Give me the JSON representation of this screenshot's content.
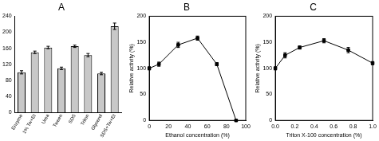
{
  "chart_data": [
    {
      "type": "bar",
      "title": "A",
      "categories": [
        "Enzyme",
        "1% Tw+Et",
        "Urea",
        "Tween",
        "SDS",
        "Triton",
        "Glycerol",
        "SDS+Tw+Et"
      ],
      "values": [
        100,
        150,
        162,
        110,
        165,
        143,
        97,
        215
      ],
      "errors": [
        4,
        3,
        3,
        3,
        3,
        4,
        3,
        8
      ],
      "color": "#c8c8c8",
      "ylim": [
        0,
        240
      ],
      "yticks": [
        0,
        40,
        80,
        120,
        160,
        200,
        240
      ],
      "grid": false
    },
    {
      "type": "line",
      "title": "B",
      "x": [
        0,
        10,
        30,
        50,
        70,
        90
      ],
      "values": [
        100,
        108,
        145,
        158,
        108,
        0
      ],
      "errors": [
        3,
        4,
        5,
        4,
        3,
        1
      ],
      "x_label": "Ethanol concentration (%)",
      "y_label": "Relative activity (%)",
      "color": "#000000",
      "marker": "square",
      "line_style": "solid",
      "xlim": [
        0,
        100
      ],
      "xticks": [
        0,
        20,
        40,
        60,
        80,
        100
      ],
      "ylim": [
        0,
        200
      ],
      "yticks": [
        0,
        50,
        100,
        150,
        200
      ],
      "grid": false
    },
    {
      "type": "line",
      "title": "C",
      "x": [
        0,
        0.1,
        0.25,
        0.5,
        0.75,
        1.0
      ],
      "values": [
        100,
        125,
        140,
        153,
        135,
        110
      ],
      "errors": [
        3,
        5,
        3,
        4,
        5,
        3
      ],
      "x_label": "Triton X-100 concentration (%)",
      "y_label": "Relative activity (%)",
      "color": "#000000",
      "marker": "square",
      "line_style": "solid",
      "xlim": [
        0,
        1.0
      ],
      "xticks": [
        {
          "value": 0,
          "label": "0.0"
        },
        0.2,
        0.4,
        0.6,
        0.8,
        {
          "value": 1.0,
          "label": "1.0"
        }
      ],
      "ylim": [
        0,
        200
      ],
      "yticks": [
        0,
        50,
        100,
        150,
        200
      ],
      "grid": false
    }
  ]
}
